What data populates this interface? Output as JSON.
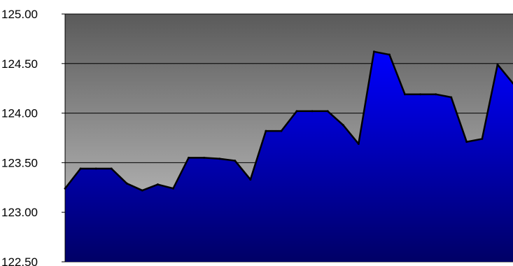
{
  "chart_data": {
    "type": "area",
    "title": "",
    "xlabel": "",
    "ylabel": "",
    "ylim": [
      122.5,
      125.0
    ],
    "yticks": [
      125.0,
      124.5,
      124.0,
      123.5,
      123.0,
      122.5
    ],
    "ytick_labels": [
      "125.00",
      "124.50",
      "124.00",
      "123.50",
      "123.00",
      "122.50"
    ],
    "grid": "horizontal",
    "legend": "none",
    "series": [
      {
        "values": [
          123.24,
          123.44,
          123.44,
          123.44,
          123.29,
          123.22,
          123.28,
          123.24,
          123.55,
          123.55,
          123.54,
          123.52,
          123.33,
          123.82,
          123.82,
          124.02,
          124.02,
          124.02,
          123.88,
          123.69,
          124.62,
          124.59,
          124.19,
          124.19,
          124.19,
          124.16,
          123.71,
          123.74,
          124.49,
          124.3
        ]
      }
    ],
    "colors": {
      "fill_top": "#0000ff",
      "fill_bottom": "#000066",
      "plot_bg_top": "#5a5a5a",
      "plot_bg_bottom": "#cccccc",
      "line": "#000000",
      "gridline": "#000000"
    }
  }
}
